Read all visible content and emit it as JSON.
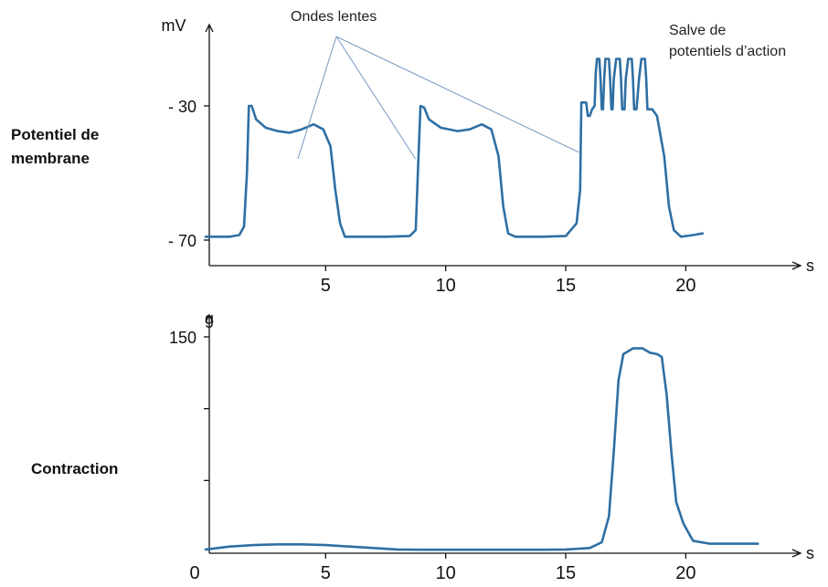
{
  "chart_data": [
    {
      "type": "line",
      "title": "",
      "row_label": [
        "Potentiel de",
        "membrane"
      ],
      "ylabel": "mV",
      "xlabel": "s",
      "xlim": [
        0,
        23.5
      ],
      "ylim": [
        -75,
        -12
      ],
      "x_ticks": [
        5,
        10,
        15,
        20
      ],
      "y_ticks": [
        -30,
        -70
      ],
      "y_tick_labels": [
        "- 30",
        "- 70"
      ],
      "annotations": {
        "slow_waves": "Ondes lentes",
        "burst": [
          "Salve de",
          "potentiels d’action"
        ]
      },
      "series": [
        {
          "color": "#2f6fa3",
          "points": [
            [
              0,
              -69
            ],
            [
              1.0,
              -69
            ],
            [
              1.4,
              -68.5
            ],
            [
              1.6,
              -66
            ],
            [
              1.72,
              -50
            ],
            [
              1.8,
              -30
            ],
            [
              1.92,
              -30
            ],
            [
              2.1,
              -34
            ],
            [
              2.5,
              -36.5
            ],
            [
              3.0,
              -37.5
            ],
            [
              3.5,
              -38
            ],
            [
              4.0,
              -37
            ],
            [
              4.5,
              -35.5
            ],
            [
              4.9,
              -37
            ],
            [
              5.2,
              -42
            ],
            [
              5.4,
              -55
            ],
            [
              5.6,
              -65
            ],
            [
              5.8,
              -69
            ],
            [
              6.5,
              -69
            ],
            [
              7.5,
              -69
            ],
            [
              8.5,
              -68.8
            ],
            [
              8.75,
              -67
            ],
            [
              8.85,
              -48
            ],
            [
              8.95,
              -30
            ],
            [
              9.1,
              -30.5
            ],
            [
              9.3,
              -34
            ],
            [
              9.8,
              -36.5
            ],
            [
              10.5,
              -37.5
            ],
            [
              11.0,
              -37
            ],
            [
              11.5,
              -35.5
            ],
            [
              11.9,
              -37
            ],
            [
              12.2,
              -45
            ],
            [
              12.4,
              -60
            ],
            [
              12.6,
              -68
            ],
            [
              12.9,
              -69
            ],
            [
              14.0,
              -69
            ],
            [
              15.0,
              -68.8
            ],
            [
              15.45,
              -65
            ],
            [
              15.6,
              -55
            ],
            [
              15.65,
              -29
            ],
            [
              15.85,
              -29
            ],
            [
              15.92,
              -33
            ],
            [
              16.0,
              -33
            ],
            [
              16.1,
              -31
            ],
            [
              16.2,
              -30
            ],
            [
              16.25,
              -20
            ],
            [
              16.3,
              -16
            ],
            [
              16.4,
              -16
            ],
            [
              16.45,
              -22
            ],
            [
              16.5,
              -31
            ],
            [
              16.55,
              -31
            ],
            [
              16.6,
              -22
            ],
            [
              16.65,
              -16
            ],
            [
              16.8,
              -16
            ],
            [
              16.85,
              -22
            ],
            [
              16.9,
              -31
            ],
            [
              16.95,
              -31
            ],
            [
              17.0,
              -22
            ],
            [
              17.1,
              -16
            ],
            [
              17.25,
              -16
            ],
            [
              17.3,
              -22
            ],
            [
              17.35,
              -31
            ],
            [
              17.45,
              -31
            ],
            [
              17.5,
              -22
            ],
            [
              17.6,
              -16
            ],
            [
              17.75,
              -16
            ],
            [
              17.8,
              -22
            ],
            [
              17.85,
              -31
            ],
            [
              17.95,
              -31
            ],
            [
              18.05,
              -22
            ],
            [
              18.15,
              -16
            ],
            [
              18.3,
              -16
            ],
            [
              18.35,
              -22
            ],
            [
              18.4,
              -31
            ],
            [
              18.6,
              -31
            ],
            [
              18.8,
              -33
            ],
            [
              19.1,
              -45
            ],
            [
              19.3,
              -60
            ],
            [
              19.5,
              -67
            ],
            [
              19.8,
              -69
            ],
            [
              20.3,
              -68.5
            ],
            [
              20.7,
              -68
            ]
          ]
        }
      ]
    },
    {
      "type": "line",
      "title": "",
      "row_label": "Contraction",
      "ylabel": "g",
      "xlabel": "s",
      "xlim": [
        0,
        23.5
      ],
      "ylim": [
        0,
        158
      ],
      "x_ticks": [
        0,
        5,
        10,
        15,
        20
      ],
      "y_ticks": [
        150,
        100,
        50
      ],
      "y_tick_labels": [
        "150",
        "",
        ""
      ],
      "series": [
        {
          "color": "#2f6fa3",
          "points": [
            [
              0,
              2
            ],
            [
              1,
              4
            ],
            [
              2,
              5
            ],
            [
              3,
              5.5
            ],
            [
              4,
              5.5
            ],
            [
              5,
              5
            ],
            [
              6,
              4
            ],
            [
              7,
              3
            ],
            [
              8,
              2
            ],
            [
              9,
              1.8
            ],
            [
              10,
              1.8
            ],
            [
              11,
              1.8
            ],
            [
              12,
              1.8
            ],
            [
              13,
              1.8
            ],
            [
              14,
              1.8
            ],
            [
              15,
              2
            ],
            [
              16,
              3
            ],
            [
              16.5,
              7
            ],
            [
              16.8,
              25
            ],
            [
              17.0,
              70
            ],
            [
              17.2,
              120
            ],
            [
              17.4,
              138
            ],
            [
              17.8,
              142
            ],
            [
              18.2,
              142
            ],
            [
              18.5,
              139
            ],
            [
              18.8,
              138
            ],
            [
              19.0,
              136
            ],
            [
              19.2,
              110
            ],
            [
              19.4,
              70
            ],
            [
              19.6,
              35
            ],
            [
              19.9,
              20
            ],
            [
              20.3,
              8
            ],
            [
              21.0,
              6
            ],
            [
              22.0,
              6
            ],
            [
              23.0,
              6
            ]
          ]
        }
      ]
    }
  ]
}
